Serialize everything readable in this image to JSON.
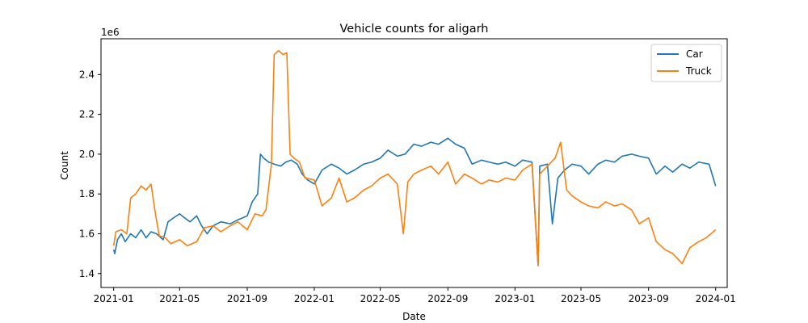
{
  "chart_data": {
    "type": "line",
    "title": "Vehicle counts for aligarh",
    "xlabel": "Date",
    "ylabel": "Count",
    "y_offset_label": "1e6",
    "xlim": [
      "2020-12-09",
      "2024-01-22"
    ],
    "ylim": [
      1330000,
      2580000
    ],
    "x_ticks": [
      "2021-01",
      "2021-05",
      "2021-09",
      "2022-01",
      "2022-05",
      "2022-09",
      "2023-01",
      "2023-05",
      "2023-09",
      "2024-01"
    ],
    "y_ticks": [
      {
        "value": 1400000,
        "label": "1.4"
      },
      {
        "value": 1600000,
        "label": "1.6"
      },
      {
        "value": 1800000,
        "label": "1.8"
      },
      {
        "value": 2000000,
        "label": "2.0"
      },
      {
        "value": 2200000,
        "label": "2.2"
      },
      {
        "value": 2400000,
        "label": "2.4"
      }
    ],
    "legend_position": "top-right",
    "grid": false,
    "series": [
      {
        "name": "Car",
        "color": "#1f77b4",
        "points": [
          [
            "2021-01-01",
            1520000
          ],
          [
            "2021-01-03",
            1500000
          ],
          [
            "2021-01-08",
            1570000
          ],
          [
            "2021-01-15",
            1600000
          ],
          [
            "2021-01-22",
            1560000
          ],
          [
            "2021-02-01",
            1600000
          ],
          [
            "2021-02-10",
            1580000
          ],
          [
            "2021-02-20",
            1620000
          ],
          [
            "2021-03-01",
            1580000
          ],
          [
            "2021-03-10",
            1610000
          ],
          [
            "2021-03-20",
            1600000
          ],
          [
            "2021-04-01",
            1570000
          ],
          [
            "2021-04-10",
            1660000
          ],
          [
            "2021-04-20",
            1680000
          ],
          [
            "2021-05-01",
            1700000
          ],
          [
            "2021-05-10",
            1680000
          ],
          [
            "2021-05-20",
            1660000
          ],
          [
            "2021-06-01",
            1690000
          ],
          [
            "2021-06-10",
            1640000
          ],
          [
            "2021-06-20",
            1600000
          ],
          [
            "2021-07-01",
            1640000
          ],
          [
            "2021-07-15",
            1660000
          ],
          [
            "2021-08-01",
            1650000
          ],
          [
            "2021-08-15",
            1670000
          ],
          [
            "2021-09-01",
            1690000
          ],
          [
            "2021-09-10",
            1760000
          ],
          [
            "2021-09-20",
            1800000
          ],
          [
            "2021-09-25",
            2000000
          ],
          [
            "2021-10-01",
            1980000
          ],
          [
            "2021-10-10",
            1960000
          ],
          [
            "2021-10-20",
            1950000
          ],
          [
            "2021-11-01",
            1940000
          ],
          [
            "2021-11-10",
            1960000
          ],
          [
            "2021-11-20",
            1970000
          ],
          [
            "2021-12-01",
            1950000
          ],
          [
            "2021-12-10",
            1900000
          ],
          [
            "2021-12-20",
            1870000
          ],
          [
            "2022-01-01",
            1850000
          ],
          [
            "2022-01-15",
            1920000
          ],
          [
            "2022-02-01",
            1950000
          ],
          [
            "2022-02-15",
            1930000
          ],
          [
            "2022-03-01",
            1900000
          ],
          [
            "2022-03-15",
            1920000
          ],
          [
            "2022-04-01",
            1950000
          ],
          [
            "2022-04-15",
            1960000
          ],
          [
            "2022-05-01",
            1980000
          ],
          [
            "2022-05-15",
            2020000
          ],
          [
            "2022-06-01",
            1990000
          ],
          [
            "2022-06-15",
            2000000
          ],
          [
            "2022-07-01",
            2050000
          ],
          [
            "2022-07-15",
            2040000
          ],
          [
            "2022-08-01",
            2060000
          ],
          [
            "2022-08-15",
            2050000
          ],
          [
            "2022-09-01",
            2080000
          ],
          [
            "2022-09-15",
            2050000
          ],
          [
            "2022-10-01",
            2030000
          ],
          [
            "2022-10-15",
            1950000
          ],
          [
            "2022-11-01",
            1970000
          ],
          [
            "2022-11-15",
            1960000
          ],
          [
            "2022-12-01",
            1950000
          ],
          [
            "2022-12-15",
            1960000
          ],
          [
            "2023-01-01",
            1940000
          ],
          [
            "2023-01-15",
            1970000
          ],
          [
            "2023-02-01",
            1960000
          ],
          [
            "2023-02-12",
            1440000
          ],
          [
            "2023-02-15",
            1940000
          ],
          [
            "2023-03-01",
            1950000
          ],
          [
            "2023-03-10",
            1650000
          ],
          [
            "2023-03-20",
            1880000
          ],
          [
            "2023-04-01",
            1920000
          ],
          [
            "2023-04-15",
            1950000
          ],
          [
            "2023-05-01",
            1940000
          ],
          [
            "2023-05-15",
            1900000
          ],
          [
            "2023-06-01",
            1950000
          ],
          [
            "2023-06-15",
            1970000
          ],
          [
            "2023-07-01",
            1960000
          ],
          [
            "2023-07-15",
            1990000
          ],
          [
            "2023-08-01",
            2000000
          ],
          [
            "2023-08-15",
            1990000
          ],
          [
            "2023-09-01",
            1980000
          ],
          [
            "2023-09-15",
            1900000
          ],
          [
            "2023-10-01",
            1940000
          ],
          [
            "2023-10-15",
            1910000
          ],
          [
            "2023-11-01",
            1950000
          ],
          [
            "2023-11-15",
            1930000
          ],
          [
            "2023-12-01",
            1960000
          ],
          [
            "2023-12-20",
            1950000
          ],
          [
            "2024-01-01",
            1840000
          ]
        ]
      },
      {
        "name": "Truck",
        "color": "#ff7f0e",
        "points": [
          [
            "2021-01-01",
            1540000
          ],
          [
            "2021-01-05",
            1610000
          ],
          [
            "2021-01-15",
            1620000
          ],
          [
            "2021-01-25",
            1600000
          ],
          [
            "2021-02-01",
            1780000
          ],
          [
            "2021-02-10",
            1800000
          ],
          [
            "2021-02-20",
            1840000
          ],
          [
            "2021-03-01",
            1820000
          ],
          [
            "2021-03-10",
            1850000
          ],
          [
            "2021-03-18",
            1700000
          ],
          [
            "2021-03-25",
            1590000
          ],
          [
            "2021-04-05",
            1580000
          ],
          [
            "2021-04-15",
            1550000
          ],
          [
            "2021-05-01",
            1570000
          ],
          [
            "2021-05-15",
            1540000
          ],
          [
            "2021-06-01",
            1560000
          ],
          [
            "2021-06-15",
            1630000
          ],
          [
            "2021-07-01",
            1640000
          ],
          [
            "2021-07-15",
            1610000
          ],
          [
            "2021-08-01",
            1640000
          ],
          [
            "2021-08-15",
            1660000
          ],
          [
            "2021-09-01",
            1620000
          ],
          [
            "2021-09-15",
            1700000
          ],
          [
            "2021-09-28",
            1690000
          ],
          [
            "2021-10-05",
            1720000
          ],
          [
            "2021-10-15",
            1950000
          ],
          [
            "2021-10-20",
            2500000
          ],
          [
            "2021-10-28",
            2520000
          ],
          [
            "2021-11-05",
            2500000
          ],
          [
            "2021-11-12",
            2510000
          ],
          [
            "2021-11-18",
            2000000
          ],
          [
            "2021-11-25",
            1980000
          ],
          [
            "2021-12-05",
            1960000
          ],
          [
            "2021-12-15",
            1880000
          ],
          [
            "2022-01-01",
            1870000
          ],
          [
            "2022-01-15",
            1740000
          ],
          [
            "2022-02-01",
            1780000
          ],
          [
            "2022-02-15",
            1880000
          ],
          [
            "2022-03-01",
            1760000
          ],
          [
            "2022-03-15",
            1780000
          ],
          [
            "2022-04-01",
            1820000
          ],
          [
            "2022-04-15",
            1840000
          ],
          [
            "2022-05-01",
            1880000
          ],
          [
            "2022-05-15",
            1900000
          ],
          [
            "2022-06-01",
            1850000
          ],
          [
            "2022-06-12",
            1600000
          ],
          [
            "2022-06-20",
            1860000
          ],
          [
            "2022-07-01",
            1900000
          ],
          [
            "2022-07-15",
            1920000
          ],
          [
            "2022-08-01",
            1940000
          ],
          [
            "2022-08-15",
            1900000
          ],
          [
            "2022-09-01",
            1960000
          ],
          [
            "2022-09-15",
            1850000
          ],
          [
            "2022-10-01",
            1900000
          ],
          [
            "2022-10-15",
            1880000
          ],
          [
            "2022-11-01",
            1850000
          ],
          [
            "2022-11-15",
            1870000
          ],
          [
            "2022-12-01",
            1860000
          ],
          [
            "2022-12-15",
            1880000
          ],
          [
            "2023-01-01",
            1870000
          ],
          [
            "2023-01-15",
            1920000
          ],
          [
            "2023-02-01",
            1950000
          ],
          [
            "2023-02-12",
            1440000
          ],
          [
            "2023-02-15",
            1900000
          ],
          [
            "2023-03-01",
            1940000
          ],
          [
            "2023-03-15",
            1980000
          ],
          [
            "2023-03-25",
            2060000
          ],
          [
            "2023-04-05",
            1820000
          ],
          [
            "2023-04-15",
            1790000
          ],
          [
            "2023-05-01",
            1760000
          ],
          [
            "2023-05-15",
            1740000
          ],
          [
            "2023-06-01",
            1730000
          ],
          [
            "2023-06-15",
            1760000
          ],
          [
            "2023-07-01",
            1740000
          ],
          [
            "2023-07-15",
            1750000
          ],
          [
            "2023-08-01",
            1720000
          ],
          [
            "2023-08-15",
            1650000
          ],
          [
            "2023-09-01",
            1680000
          ],
          [
            "2023-09-15",
            1560000
          ],
          [
            "2023-10-01",
            1520000
          ],
          [
            "2023-10-15",
            1500000
          ],
          [
            "2023-11-01",
            1450000
          ],
          [
            "2023-11-15",
            1530000
          ],
          [
            "2023-12-01",
            1560000
          ],
          [
            "2023-12-15",
            1580000
          ],
          [
            "2024-01-01",
            1620000
          ]
        ]
      }
    ]
  }
}
